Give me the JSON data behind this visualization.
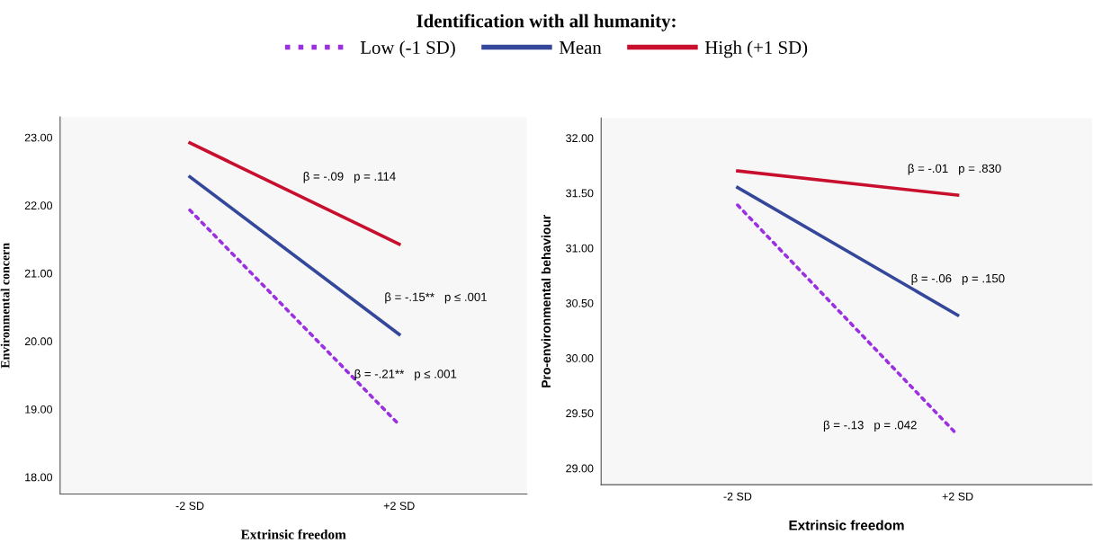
{
  "chart_data": [
    {
      "type": "line",
      "xlabel": "Extrinsic freedom",
      "ylabel": "Environmental concern",
      "legend_title": "Identification with all humanity:",
      "legend": "top",
      "categories": [
        "-2 SD",
        "+2 SD"
      ],
      "ylim": [
        17.75,
        23.3
      ],
      "yticks": [
        {
          "value": 18,
          "label": "18.00"
        },
        {
          "value": 19,
          "label": "19.00"
        },
        {
          "value": 20,
          "label": "20.00"
        },
        {
          "value": 21,
          "label": "21.00"
        },
        {
          "value": 22,
          "label": "22.00"
        },
        {
          "value": 23,
          "label": "23.00"
        }
      ],
      "grid": false,
      "series": [
        {
          "name": "Low (-1 SD)",
          "color": "#9b30e0",
          "line_style": "dotted",
          "values": [
            21.93,
            18.77
          ]
        },
        {
          "name": "Mean",
          "color": "#34479a",
          "line_style": "solid",
          "values": [
            22.42,
            20.1
          ]
        },
        {
          "name": "High (+1 SD)",
          "color": "#c8102e",
          "line_style": "solid",
          "values": [
            22.92,
            21.43
          ]
        }
      ],
      "annotations": [
        "β = -.09   p = .114",
        "β = -.15**   p ≤ .001",
        "β = -.21**   p ≤ .001"
      ]
    },
    {
      "type": "line",
      "xlabel": "Extrinsic freedom",
      "ylabel": "Pro-environmental behaviour",
      "categories": [
        "-2 SD",
        "+2 SD"
      ],
      "ylim": [
        28.85,
        32.18
      ],
      "yticks": [
        {
          "value": 29,
          "label": "29.00"
        },
        {
          "value": 29.5,
          "label": "29.50"
        },
        {
          "value": 30,
          "label": "30.00"
        },
        {
          "value": 30.5,
          "label": "30.50"
        },
        {
          "value": 31,
          "label": "31.00"
        },
        {
          "value": 31.5,
          "label": "31.50"
        },
        {
          "value": 32,
          "label": "32.00"
        }
      ],
      "grid": false,
      "series": [
        {
          "color": "#9b30e0",
          "line_style": "dotted",
          "values": [
            31.39,
            29.3
          ]
        },
        {
          "color": "#34479a",
          "line_style": "solid",
          "values": [
            31.55,
            30.39
          ]
        },
        {
          "color": "#c8102e",
          "line_style": "solid",
          "values": [
            31.7,
            31.48
          ]
        }
      ],
      "annotations": [
        "β = -.01   p = .830",
        "β = -.06   p = .150",
        "β = -.13   p = .042"
      ]
    }
  ]
}
